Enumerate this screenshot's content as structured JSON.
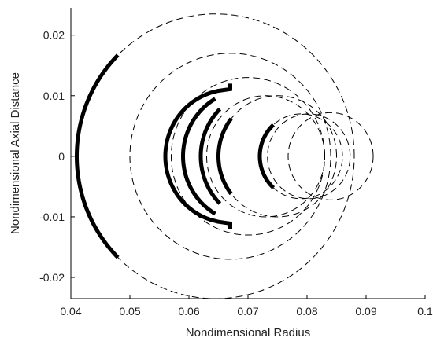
{
  "chart_data": {
    "type": "line",
    "title": "",
    "xlabel": "Nondimensional Radius",
    "ylabel": "Nondimensional Axial Distance",
    "xlim": [
      0.04,
      0.1
    ],
    "ylim": [
      -0.0235,
      0.0245
    ],
    "xticks": [
      0.04,
      0.05,
      0.06,
      0.07,
      0.08,
      0.09,
      0.1
    ],
    "xtick_labels": [
      "0.04",
      "0.05",
      "0.06",
      "0.07",
      "0.08",
      "0.09",
      "0.1"
    ],
    "yticks": [
      0.02,
      0.01,
      0,
      -0.01,
      -0.02
    ],
    "ytick_labels": [
      "0.02",
      "0.01",
      "0",
      "-0.01",
      "-0.02"
    ],
    "grid": false,
    "legend": "none",
    "colors": {
      "line": "#000000",
      "axis": "#000000"
    },
    "series": [
      {
        "style": "dashed-arc",
        "center": [
          0.0645,
          0.0
        ],
        "radius": 0.0235
      },
      {
        "style": "dashed-arc",
        "center": [
          0.067,
          0.0
        ],
        "radius": 0.017
      },
      {
        "style": "dashed-arc",
        "center": [
          0.07,
          0.0
        ],
        "radius": 0.013
      },
      {
        "style": "dashed-arc",
        "center": [
          0.073,
          0.0
        ],
        "radius": 0.01
      },
      {
        "style": "dashed-arc",
        "center": [
          0.075,
          0.0
        ],
        "radius": 0.01
      },
      {
        "style": "dashed-arc",
        "center": [
          0.079,
          0.0
        ],
        "radius": 0.007
      },
      {
        "style": "dashed-arc",
        "center": [
          0.0803,
          0.0
        ],
        "radius": 0.007
      },
      {
        "style": "dashed-arc",
        "center": [
          0.084,
          0.0
        ],
        "radius": 0.0072
      },
      {
        "style": "solid-arc",
        "center": [
          0.0645,
          0.0
        ],
        "radius": 0.0235,
        "y_range": [
          -0.0167,
          0.0167
        ]
      },
      {
        "style": "solid-arc",
        "center": [
          0.067,
          0.0
        ],
        "radius": 0.011,
        "y_range": [
          -0.012,
          0.012
        ]
      },
      {
        "style": "solid-arc",
        "center": [
          0.07,
          0.0
        ],
        "radius": 0.011,
        "y_range": [
          -0.0095,
          0.0095
        ]
      },
      {
        "style": "solid-arc",
        "center": [
          0.073,
          0.0
        ],
        "radius": 0.011,
        "y_range": [
          -0.0078,
          0.0078
        ]
      },
      {
        "style": "solid-arc",
        "center": [
          0.075,
          0.0
        ],
        "radius": 0.01,
        "y_range": [
          -0.0062,
          0.0062
        ]
      },
      {
        "style": "solid-arc",
        "center": [
          0.079,
          0.0
        ],
        "radius": 0.007,
        "y_range": [
          -0.0052,
          0.0052
        ]
      }
    ]
  }
}
